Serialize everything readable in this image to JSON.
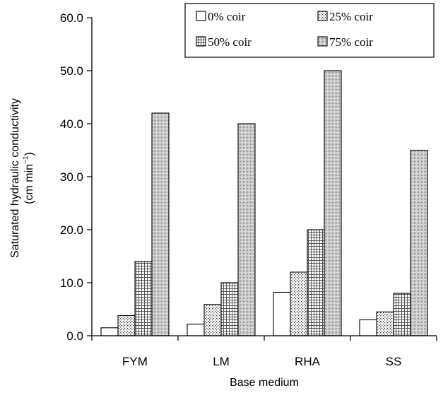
{
  "chart_data": {
    "type": "bar",
    "categories": [
      "FYM",
      "LM",
      "RHA",
      "SS"
    ],
    "series": [
      {
        "name": "0% coir",
        "values": [
          1.5,
          2.2,
          8.2,
          3.0
        ]
      },
      {
        "name": "25% coir",
        "values": [
          3.8,
          5.9,
          12.0,
          4.5
        ]
      },
      {
        "name": "50% coir",
        "values": [
          14.0,
          10.0,
          20.0,
          8.0
        ]
      },
      {
        "name": "75% coir",
        "values": [
          42.0,
          40.0,
          50.0,
          35.0
        ]
      }
    ],
    "ylabel_line1": "Saturated hydraulic conductivity",
    "ylabel_line2_prefix": "(cm min",
    "ylabel_superscript": "−1",
    "ylabel_line2_suffix": ")",
    "xlabel": "Base medium",
    "ylim": [
      0,
      60
    ],
    "yticks": [
      "0.0",
      "10.0",
      "20.0",
      "30.0",
      "40.0",
      "50.0",
      "60.0"
    ],
    "grid": false,
    "legend_position": "top-right",
    "legend_columns": 2
  }
}
